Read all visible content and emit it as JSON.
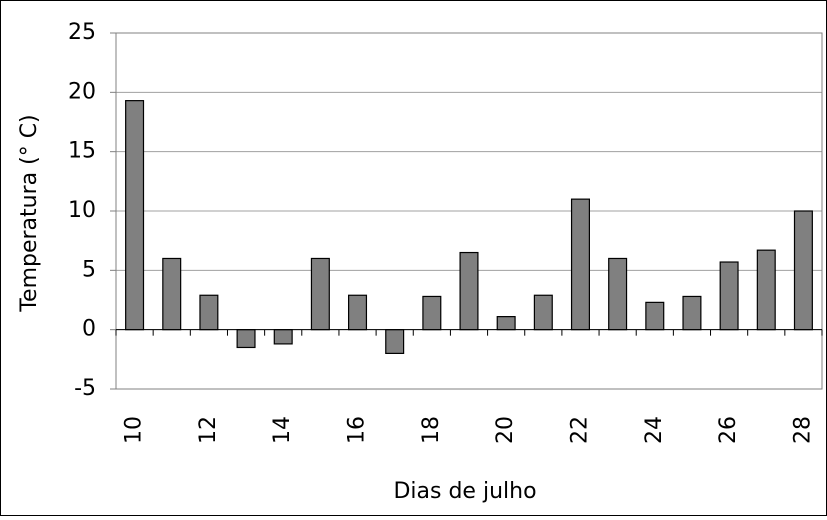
{
  "chart_data": {
    "type": "bar",
    "x_label": "Dias de julho",
    "y_label": "Temperatura (° C)",
    "categories": [
      "10",
      null,
      "12",
      null,
      "14",
      null,
      "16",
      null,
      "18",
      null,
      "20",
      null,
      "22",
      null,
      "24",
      null,
      "26",
      null,
      "28"
    ],
    "values": [
      19.3,
      6,
      2.9,
      -1.5,
      -1.2,
      6,
      2.9,
      -2,
      2.8,
      6.5,
      1.1,
      2.9,
      11,
      6,
      2.3,
      2.8,
      5.7,
      6.7,
      10
    ],
    "color": "#808080",
    "ylim": [
      -5,
      25
    ],
    "yticks": [
      -5,
      0,
      5,
      10,
      15,
      20,
      25
    ],
    "grid": true
  }
}
